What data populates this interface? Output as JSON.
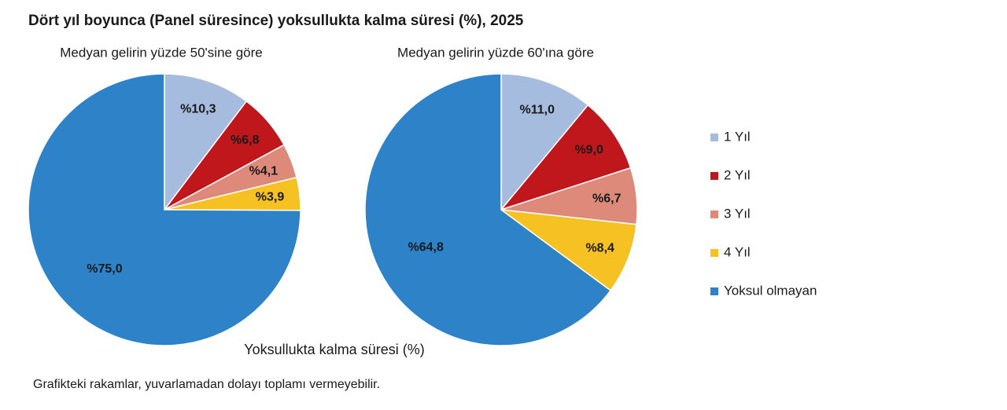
{
  "title": "Dört yıl boyunca (Panel süresince) yoksullukta kalma süresi (%), 2025",
  "axis_label": "Yoksullukta kalma süresi (%)",
  "note": "Grafikteki rakamlar, yuvarlamadan dolayı toplamı vermeyebilir.",
  "chart_data": [
    {
      "type": "pie",
      "subtitle": "Medyan gelirin yüzde 50'sine göre",
      "categories": [
        "1 Yıl",
        "2 Yıl",
        "3 Yıl",
        "4 Yıl",
        "Yoksul olmayan"
      ],
      "values": [
        10.3,
        6.8,
        4.1,
        3.9,
        75.0
      ],
      "value_labels": [
        "%10,3",
        "%6,8",
        "%4,1",
        "%3,9",
        "%75,0"
      ],
      "colors": [
        "#a6bcde",
        "#c0171c",
        "#de8a7b",
        "#f6c122",
        "#2e82c8"
      ]
    },
    {
      "type": "pie",
      "subtitle": "Medyan gelirin yüzde 60'ına göre",
      "categories": [
        "1 Yıl",
        "2 Yıl",
        "3 Yıl",
        "4 Yıl",
        "Yoksul olmayan"
      ],
      "values": [
        11.0,
        9.0,
        6.7,
        8.4,
        64.8
      ],
      "value_labels": [
        "%11,0",
        "%9,0",
        "%6,7",
        "%8,4",
        "%64,8"
      ],
      "colors": [
        "#a6bcde",
        "#c0171c",
        "#de8a7b",
        "#f6c122",
        "#2e82c8"
      ]
    }
  ]
}
